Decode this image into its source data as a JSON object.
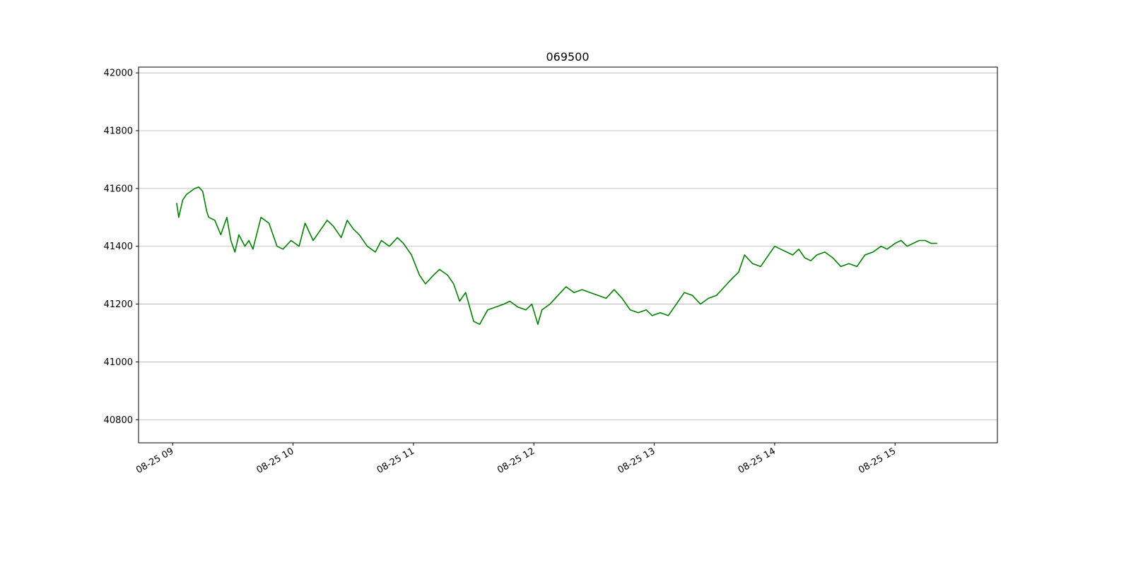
{
  "chart_data": {
    "type": "line",
    "title": "069500",
    "xlabel": "",
    "ylabel": "",
    "x_range": [
      "08-25 08:43",
      "08-25 15:51"
    ],
    "ylim": [
      40720,
      42020
    ],
    "y_ticks": [
      40800,
      41000,
      41200,
      41400,
      41600,
      41800,
      42000
    ],
    "x_ticks": [
      "08-25 09",
      "08-25 10",
      "08-25 11",
      "08-25 12",
      "08-25 13",
      "08-25 14",
      "08-25 15"
    ],
    "grid": "horizontal",
    "line_color": "#008000",
    "series": [
      {
        "x": [
          "08-25 09:02",
          "08-25 09:03",
          "08-25 09:05",
          "08-25 09:07",
          "08-25 09:09",
          "08-25 09:11",
          "08-25 09:13",
          "08-25 09:15",
          "08-25 09:17",
          "08-25 09:18",
          "08-25 09:21",
          "08-25 09:24",
          "08-25 09:27",
          "08-25 09:29",
          "08-25 09:31",
          "08-25 09:33",
          "08-25 09:36",
          "08-25 09:38",
          "08-25 09:40",
          "08-25 09:44",
          "08-25 09:48",
          "08-25 09:52",
          "08-25 09:55",
          "08-25 09:59",
          "08-25 10:03",
          "08-25 10:06",
          "08-25 10:10",
          "08-25 10:13",
          "08-25 10:17",
          "08-25 10:20",
          "08-25 10:24",
          "08-25 10:27",
          "08-25 10:30",
          "08-25 10:33",
          "08-25 10:37",
          "08-25 10:41",
          "08-25 10:44",
          "08-25 10:48",
          "08-25 10:52",
          "08-25 10:55",
          "08-25 10:59",
          "08-25 11:03",
          "08-25 11:06",
          "08-25 11:10",
          "08-25 11:13",
          "08-25 11:17",
          "08-25 11:20",
          "08-25 11:23",
          "08-25 11:26",
          "08-25 11:30",
          "08-25 11:33",
          "08-25 11:37",
          "08-25 11:41",
          "08-25 11:45",
          "08-25 11:48",
          "08-25 11:52",
          "08-25 11:56",
          "08-25 11:59",
          "08-25 12:02",
          "08-25 12:04",
          "08-25 12:08",
          "08-25 12:12",
          "08-25 12:16",
          "08-25 12:20",
          "08-25 12:24",
          "08-25 12:28",
          "08-25 12:32",
          "08-25 12:36",
          "08-25 12:40",
          "08-25 12:44",
          "08-25 12:48",
          "08-25 12:52",
          "08-25 12:56",
          "08-25 12:59",
          "08-25 13:03",
          "08-25 13:07",
          "08-25 13:11",
          "08-25 13:15",
          "08-25 13:19",
          "08-25 13:23",
          "08-25 13:27",
          "08-25 13:31",
          "08-25 13:35",
          "08-25 13:39",
          "08-25 13:42",
          "08-25 13:45",
          "08-25 13:49",
          "08-25 13:53",
          "08-25 13:56",
          "08-25 14:00",
          "08-25 14:03",
          "08-25 14:06",
          "08-25 14:09",
          "08-25 14:12",
          "08-25 14:15",
          "08-25 14:18",
          "08-25 14:21",
          "08-25 14:25",
          "08-25 14:29",
          "08-25 14:33",
          "08-25 14:37",
          "08-25 14:41",
          "08-25 14:45",
          "08-25 14:49",
          "08-25 14:53",
          "08-25 14:56",
          "08-25 15:00",
          "08-25 15:03",
          "08-25 15:06",
          "08-25 15:09",
          "08-25 15:12",
          "08-25 15:15",
          "08-25 15:18",
          "08-25 15:21"
        ],
        "y": [
          41550,
          41500,
          41560,
          41580,
          41590,
          41600,
          41605,
          41590,
          41520,
          41500,
          41490,
          41440,
          41500,
          41420,
          41380,
          41440,
          41400,
          41420,
          41390,
          41500,
          41480,
          41400,
          41390,
          41420,
          41400,
          41480,
          41420,
          41450,
          41490,
          41470,
          41430,
          41490,
          41460,
          41440,
          41400,
          41380,
          41420,
          41400,
          41430,
          41410,
          41370,
          41300,
          41270,
          41300,
          41320,
          41300,
          41270,
          41210,
          41240,
          41140,
          41130,
          41180,
          41190,
          41200,
          41210,
          41190,
          41180,
          41200,
          41130,
          41180,
          41200,
          41230,
          41260,
          41240,
          41250,
          41240,
          41230,
          41220,
          41250,
          41220,
          41180,
          41170,
          41180,
          41160,
          41170,
          41160,
          41200,
          41240,
          41230,
          41200,
          41220,
          41230,
          41260,
          41290,
          41310,
          41370,
          41340,
          41330,
          41360,
          41400,
          41390,
          41380,
          41370,
          41390,
          41360,
          41350,
          41370,
          41380,
          41360,
          41330,
          41340,
          41330,
          41370,
          41380,
          41400,
          41390,
          41410,
          41420,
          41400,
          41410,
          41420,
          41420,
          41410,
          41410
        ]
      }
    ]
  }
}
